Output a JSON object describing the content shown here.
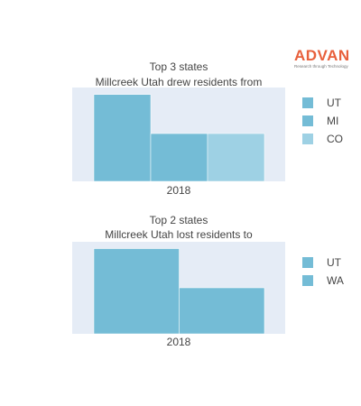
{
  "brand": {
    "name": "ADVAN",
    "tagline": "Research through Technology",
    "color": "#e8603c"
  },
  "colors": {
    "plot_bg": "#e5ecf6",
    "text": "#444444"
  },
  "chart_data": [
    {
      "type": "bar",
      "barmode": "group",
      "title_lines": [
        "Top 3 states",
        "Millcreek Utah drew residents from"
      ],
      "categories": [
        "2018"
      ],
      "series": [
        {
          "name": "UT",
          "values": [
            100
          ],
          "color": "#74bcd6"
        },
        {
          "name": "MI",
          "values": [
            55
          ],
          "color": "#74bcd6"
        },
        {
          "name": "CO",
          "values": [
            55
          ],
          "color": "#9ed1e4"
        }
      ],
      "ylim": [
        0,
        108
      ],
      "grid": false,
      "legend": "right"
    },
    {
      "type": "bar",
      "barmode": "group",
      "title_lines": [
        "Top 2 states",
        "Millcreek Utah lost residents to"
      ],
      "categories": [
        "2018"
      ],
      "series": [
        {
          "name": "UT",
          "values": [
            100
          ],
          "color": "#74bcd6"
        },
        {
          "name": "WA",
          "values": [
            54
          ],
          "color": "#74bcd6"
        }
      ],
      "ylim": [
        0,
        108
      ],
      "grid": false,
      "legend": "right"
    }
  ]
}
